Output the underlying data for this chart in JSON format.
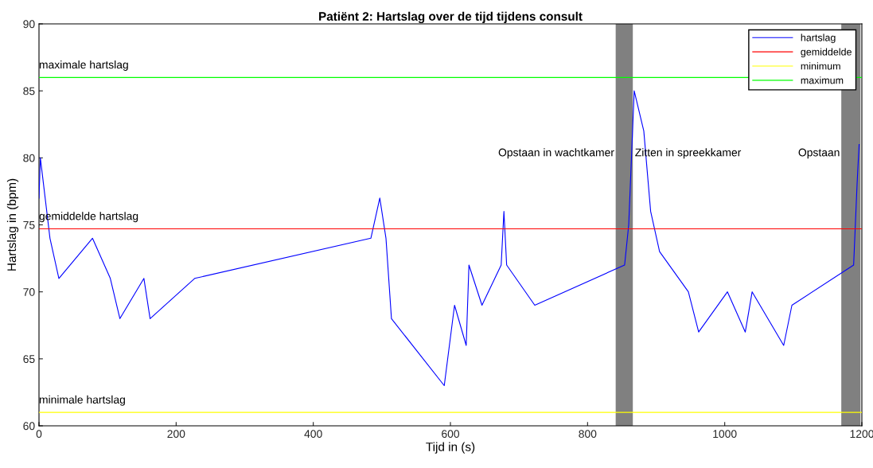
{
  "chart_data": {
    "type": "line",
    "title": "Patiënt 2: Hartslag over de tijd tijdens consult",
    "xlabel": "Tijd in (s)",
    "ylabel": "Hartslag in (bpm)",
    "xlim": [
      0,
      1200
    ],
    "xticks": [
      0,
      200,
      400,
      600,
      800,
      1000,
      1200
    ],
    "ylim": [
      60,
      90
    ],
    "yticks": [
      60,
      65,
      70,
      75,
      80,
      85,
      90
    ],
    "grid": false,
    "legend": "top right",
    "marker": "none",
    "line_style": "solid",
    "series": [
      {
        "name": "hartslag",
        "color": "#0000ff",
        "x": [
          0,
          2,
          9,
          16,
          29,
          78,
          104,
          118,
          153,
          162,
          227,
          484,
          497,
          506,
          514,
          591,
          606,
          623,
          627,
          646,
          674,
          678,
          682,
          723,
          854,
          860,
          868,
          882,
          892,
          905,
          947,
          962,
          1004,
          1030,
          1040,
          1086,
          1098,
          1188,
          1193,
          1196
        ],
        "values": [
          77,
          80,
          77,
          74,
          71,
          74,
          71,
          68,
          71,
          68,
          71,
          74,
          77,
          74,
          68,
          63,
          69,
          66,
          72,
          69,
          72,
          76,
          72,
          69,
          72,
          75,
          85,
          82,
          76,
          73,
          70,
          67,
          70,
          67,
          70,
          66,
          69,
          72,
          78,
          81
        ]
      },
      {
        "name": "gemiddelde",
        "color": "#ff0000",
        "x": [
          0,
          1200
        ],
        "values": [
          74.7,
          74.7
        ]
      },
      {
        "name": "minimum",
        "color": "#ffff00",
        "x": [
          0,
          1200
        ],
        "values": [
          61,
          61
        ]
      },
      {
        "name": "maximum",
        "color": "#00ff00",
        "x": [
          0,
          1200
        ],
        "values": [
          86,
          86
        ]
      }
    ],
    "bands": [
      {
        "axis": "x",
        "from": 841,
        "to": 866,
        "color": "#808080",
        "label": "Opstaan in wachtkamer"
      },
      {
        "axis": "x",
        "from": 1170,
        "to": 1198,
        "color": "#808080",
        "label": "Opstaan"
      }
    ],
    "annotations": [
      {
        "text": "maximale hartslag",
        "y": 86
      },
      {
        "text": "gemiddelde hartslag",
        "y": 74.7
      },
      {
        "text": "minimale hartslag",
        "y": 61
      },
      "Zitten in spreekkamer"
    ]
  }
}
